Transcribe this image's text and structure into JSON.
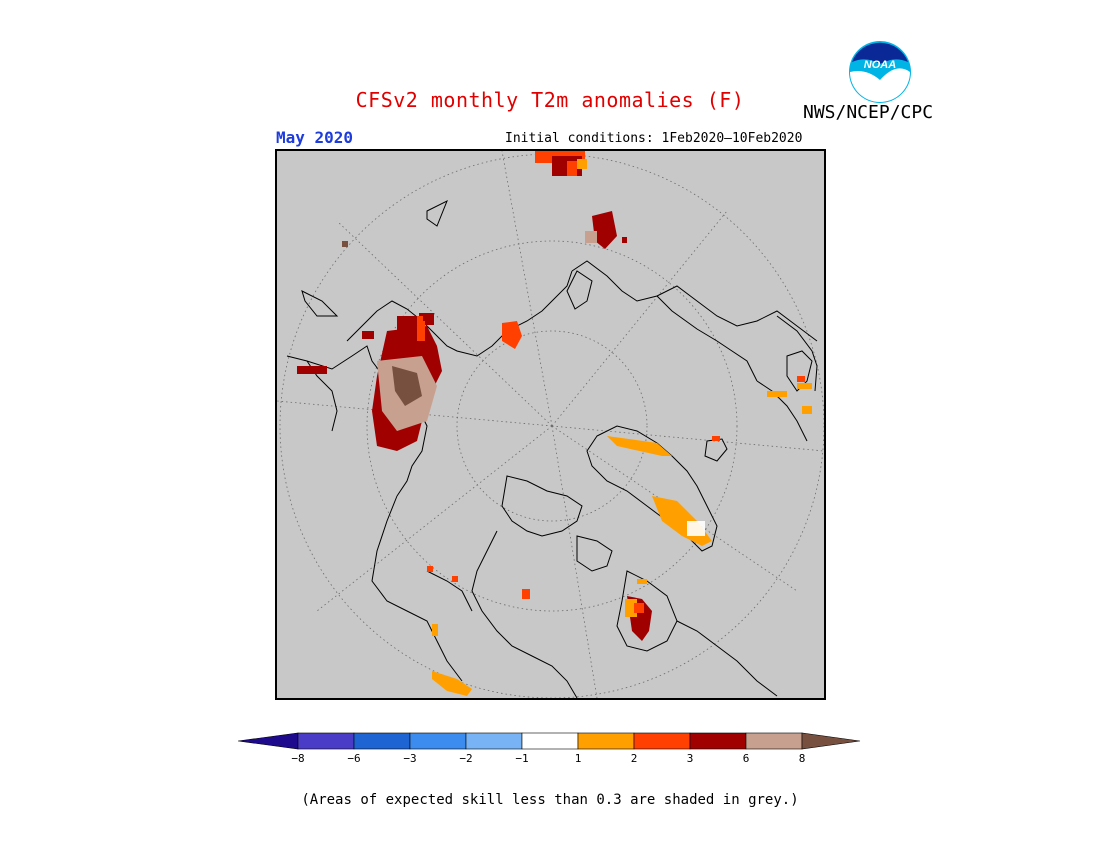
{
  "header": {
    "title": "CFSv2 monthly T2m anomalies (F)",
    "agency": "NWS/NCEP/CPC",
    "month": "May 2020",
    "initial_conditions": "Initial conditions: 1Feb2020–10Feb2020"
  },
  "logo": {
    "text": "NOAA",
    "icon": "noaa-logo-icon"
  },
  "map": {
    "projection": "north-polar-stereographic",
    "background_color": "#c8c8c8",
    "ocean_land_skill_mask": "grey"
  },
  "legend": {
    "tick_labels": [
      "−8",
      "−6",
      "−3",
      "−2",
      "−1",
      "1",
      "2",
      "3",
      "6",
      "8"
    ],
    "colors": [
      "#1e0a8c",
      "#4b3cc8",
      "#1e64d2",
      "#3c8cf0",
      "#78b4f5",
      "#ffffff",
      "#ffa000",
      "#ff4000",
      "#a00000",
      "#c8a090",
      "#785040"
    ]
  },
  "footnote": "(Areas of expected skill less than 0.3 are shaded in grey.)",
  "colors": {
    "title": "#e00000",
    "month": "#1e3cdc",
    "grey_mask": "#c8c8c8"
  }
}
